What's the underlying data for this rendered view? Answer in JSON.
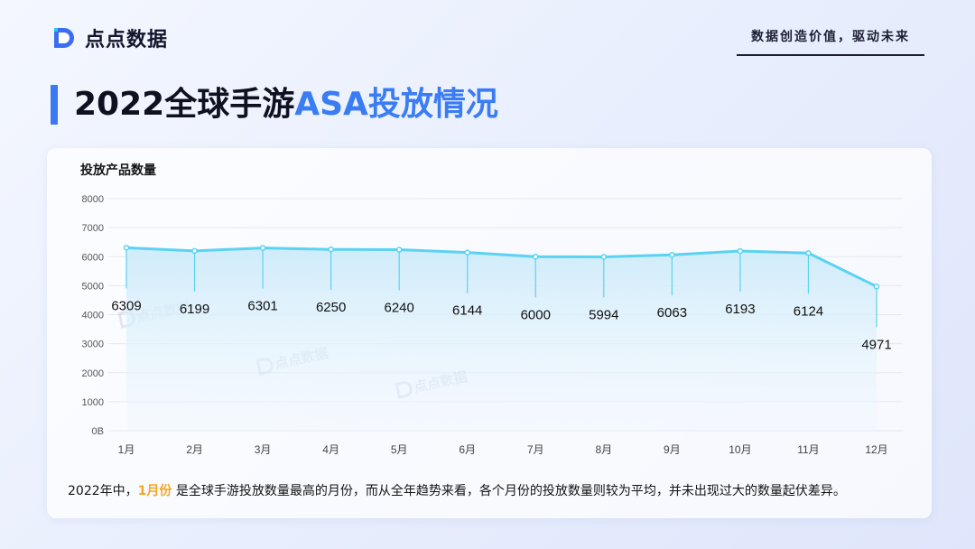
{
  "brand": {
    "name": "点点数据",
    "slogan": "数据创造价值，驱动未来"
  },
  "title": {
    "prefix": "2022全球手游",
    "accent": "ASA投放情况"
  },
  "watermark_text": "点点数据",
  "chart_data": {
    "type": "area",
    "title": "投放产品数量",
    "xlabel": "",
    "ylabel": "",
    "categories": [
      "1月",
      "2月",
      "3月",
      "4月",
      "5月",
      "6月",
      "7月",
      "8月",
      "9月",
      "10月",
      "11月",
      "12月"
    ],
    "series": [
      {
        "values": [
          6309,
          6199,
          6301,
          6250,
          6240,
          6144,
          6000,
          5994,
          6063,
          6193,
          6124,
          4971
        ]
      }
    ],
    "y_tick_labels": [
      "0B",
      "1000",
      "2000",
      "3000",
      "4000",
      "5000",
      "6000",
      "7000",
      "8000"
    ],
    "ylim": [
      0,
      8000
    ],
    "grid": true,
    "line_color": "#5ad3f2",
    "area_color": "#dff1fc"
  },
  "summary": {
    "before": "2022年中，",
    "highlight": "1月份",
    "after": " 是全球手游投放数量最高的月份，而从全年趋势来看，各个月份的投放数量则较为平均，并未出现过大的数量起伏差异。"
  }
}
